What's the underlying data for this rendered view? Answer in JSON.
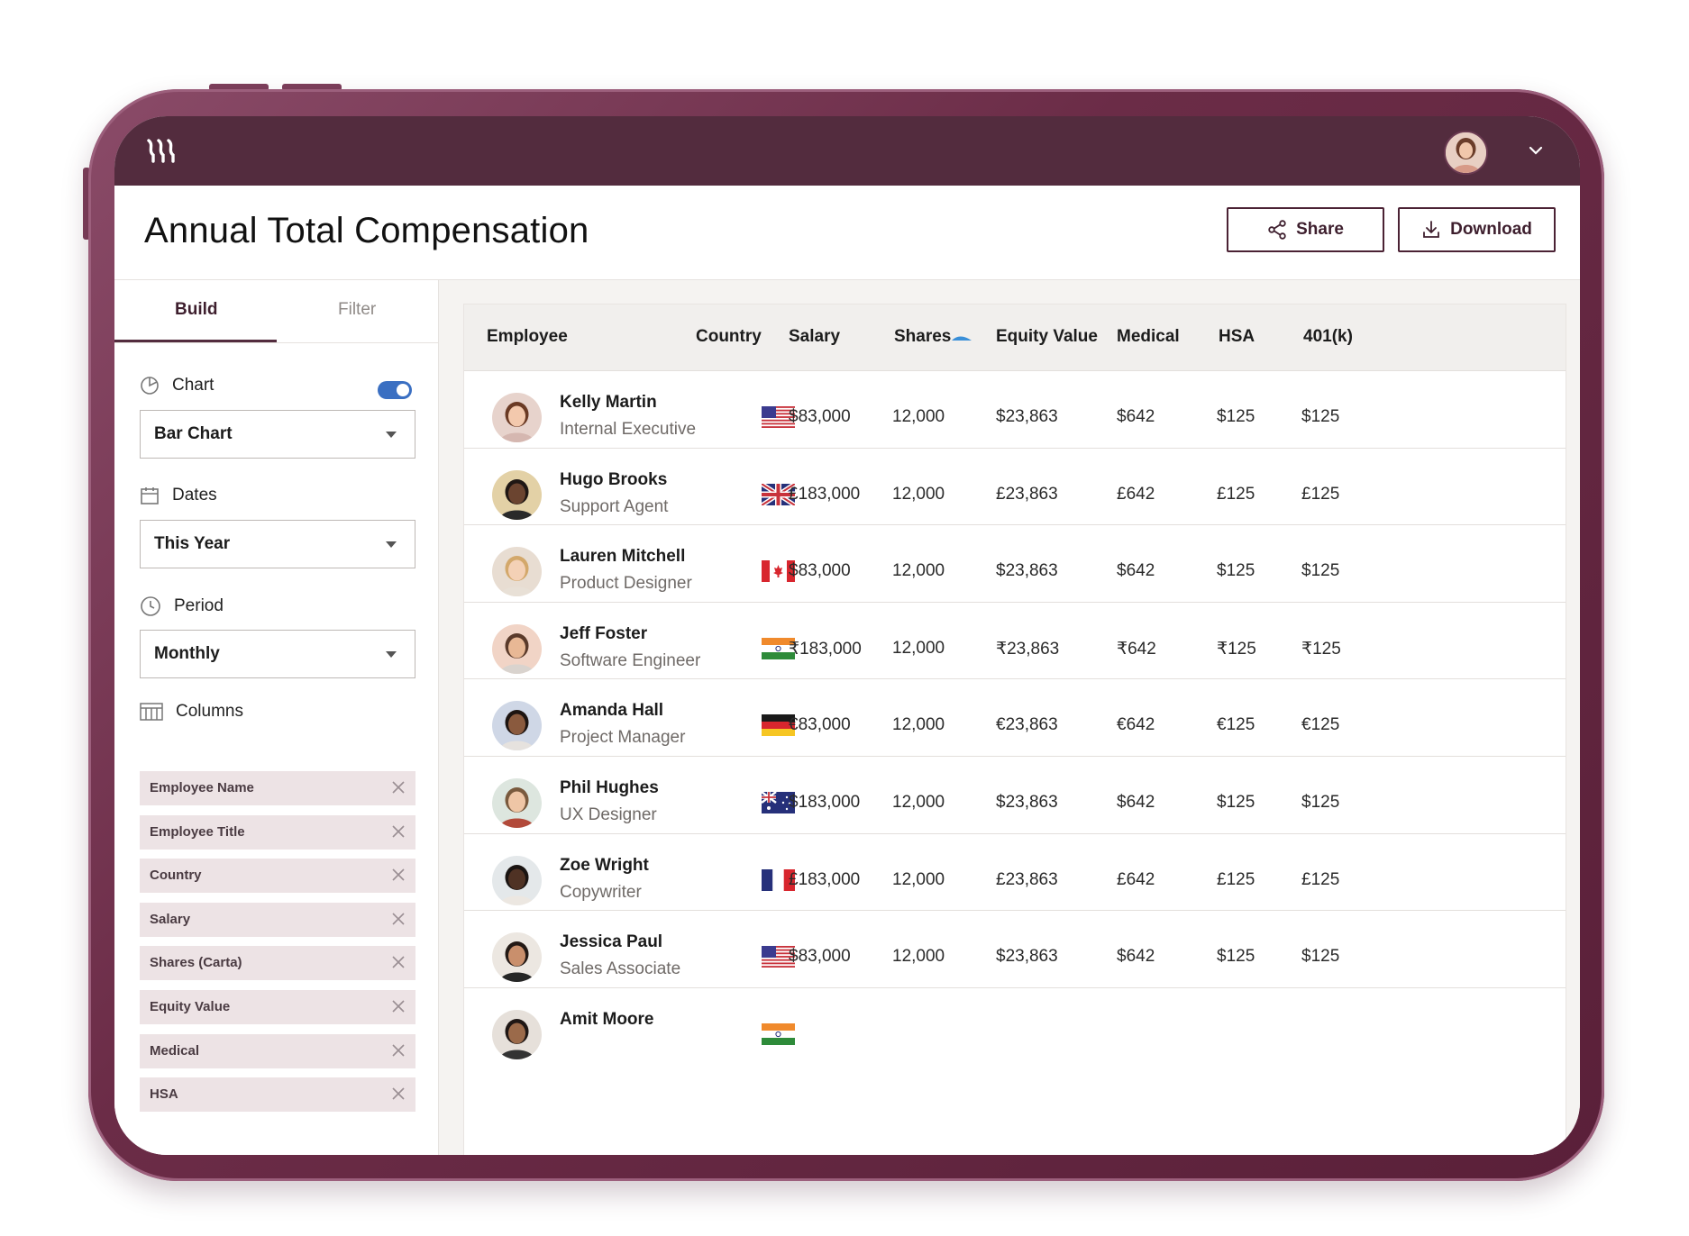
{
  "header": {
    "title": "Annual Total Compensation",
    "share_label": "Share",
    "download_label": "Download"
  },
  "sidebar": {
    "tabs": [
      "Build",
      "Filter"
    ],
    "chart": {
      "label": "Chart",
      "value": "Bar Chart",
      "enabled": true
    },
    "dates": {
      "label": "Dates",
      "value": "This Year"
    },
    "period": {
      "label": "Period",
      "value": "Monthly"
    },
    "columns": {
      "label": "Columns",
      "items": [
        "Employee Name",
        "Employee Title",
        "Country",
        "Salary",
        "Shares (Carta)",
        "Equity Value",
        "Medical",
        "HSA"
      ]
    }
  },
  "table": {
    "headers": [
      "Employee",
      "Country",
      "Salary",
      "Shares",
      "Equity Value",
      "Medical",
      "HSA",
      "401(k)"
    ],
    "rows": [
      {
        "name": "Kelly Martin",
        "title": "Internal Executive",
        "country": "us",
        "salary": "$83,000",
        "shares": "12,000",
        "equity": "$23,863",
        "medical": "$642",
        "hsa": "$125",
        "k401": "$125"
      },
      {
        "name": "Hugo Brooks",
        "title": "Support Agent",
        "country": "gb",
        "salary": "£183,000",
        "shares": "12,000",
        "equity": "£23,863",
        "medical": "£642",
        "hsa": "£125",
        "k401": "£125"
      },
      {
        "name": "Lauren Mitchell",
        "title": "Product Designer",
        "country": "ca",
        "salary": "$83,000",
        "shares": "12,000",
        "equity": "$23,863",
        "medical": "$642",
        "hsa": "$125",
        "k401": "$125"
      },
      {
        "name": "Jeff Foster",
        "title": "Software Engineer",
        "country": "in",
        "salary": "₹183,000",
        "shares": "12,000",
        "equity": "₹23,863",
        "medical": "₹642",
        "hsa": "₹125",
        "k401": "₹125"
      },
      {
        "name": "Amanda Hall",
        "title": "Project Manager",
        "country": "de",
        "salary": "€83,000",
        "shares": "12,000",
        "equity": "€23,863",
        "medical": "€642",
        "hsa": "€125",
        "k401": "€125"
      },
      {
        "name": "Phil Hughes",
        "title": "UX Designer",
        "country": "au",
        "salary": "$183,000",
        "shares": "12,000",
        "equity": "$23,863",
        "medical": "$642",
        "hsa": "$125",
        "k401": "$125"
      },
      {
        "name": "Zoe Wright",
        "title": "Copywriter",
        "country": "fr",
        "salary": "£183,000",
        "shares": "12,000",
        "equity": "£23,863",
        "medical": "£642",
        "hsa": "£125",
        "k401": "£125"
      },
      {
        "name": "Jessica Paul",
        "title": "Sales Associate",
        "country": "us",
        "salary": "$83,000",
        "shares": "12,000",
        "equity": "$23,863",
        "medical": "$642",
        "hsa": "$125",
        "k401": "$125"
      },
      {
        "name": "Amit Moore",
        "title": "",
        "country": "in",
        "salary": "",
        "shares": "",
        "equity": "",
        "medical": "",
        "hsa": "",
        "k401": ""
      }
    ]
  },
  "colors": {
    "brand": "#532c3e",
    "frame": "#6b2c47",
    "toggle": "#3a6fc2",
    "chip": "#ede3e5"
  }
}
